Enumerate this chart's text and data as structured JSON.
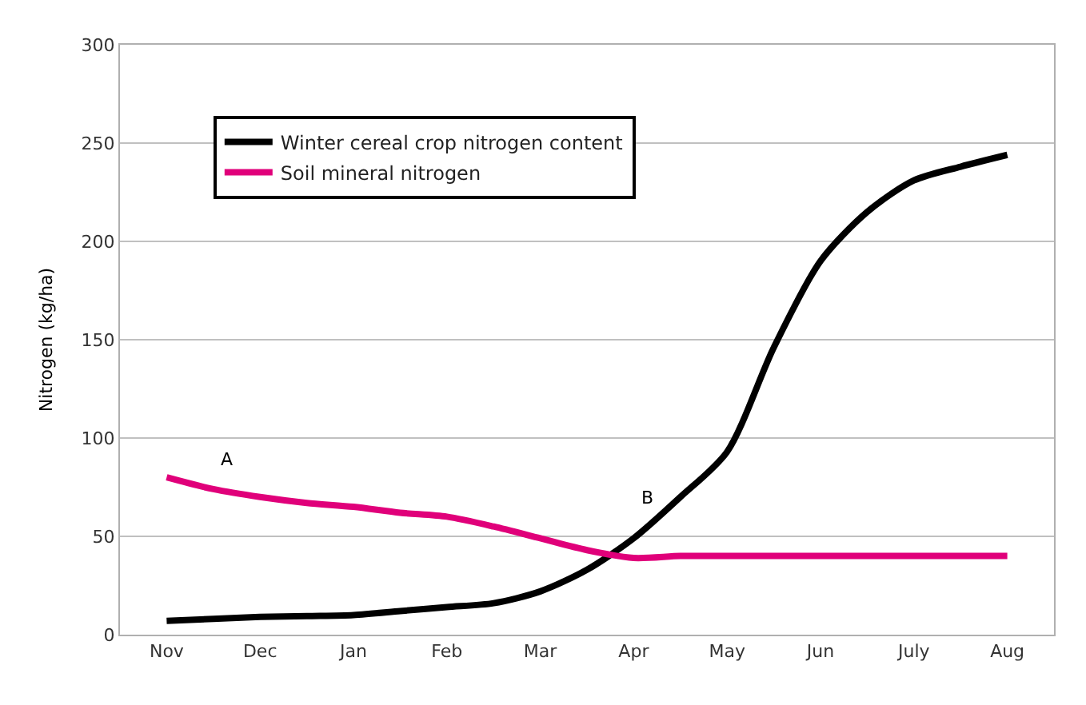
{
  "chart_data": {
    "type": "line",
    "ylabel": "Nitrogen (kg/ha)",
    "categories": [
      "Nov",
      null,
      "Dec",
      null,
      "Jan",
      null,
      "Feb",
      null,
      "Mar",
      null,
      "Apr",
      null,
      "May",
      null,
      "Jun",
      null,
      "July",
      null,
      "Aug"
    ],
    "ylim": [
      0,
      300
    ],
    "yticks": [
      0,
      50,
      100,
      150,
      200,
      250,
      300
    ],
    "series": [
      {
        "name": "Winter cereal crop nitrogen content",
        "color": "#000000",
        "values": [
          7,
          8,
          9,
          9.5,
          10,
          12,
          14,
          16,
          22,
          33,
          49,
          70,
          93,
          146,
          190,
          215,
          231,
          238,
          244
        ]
      },
      {
        "name": "Soil mineral nitrogen",
        "color": "#e0007a",
        "values": [
          80,
          74,
          70,
          67,
          65,
          62,
          60,
          55,
          49,
          43,
          39,
          40,
          40,
          40,
          40,
          40,
          40,
          40,
          40
        ]
      }
    ],
    "annotations": [
      "A",
      "B"
    ],
    "grid": "y",
    "legend": "top left",
    "marker": "none",
    "line_style": "solid"
  }
}
